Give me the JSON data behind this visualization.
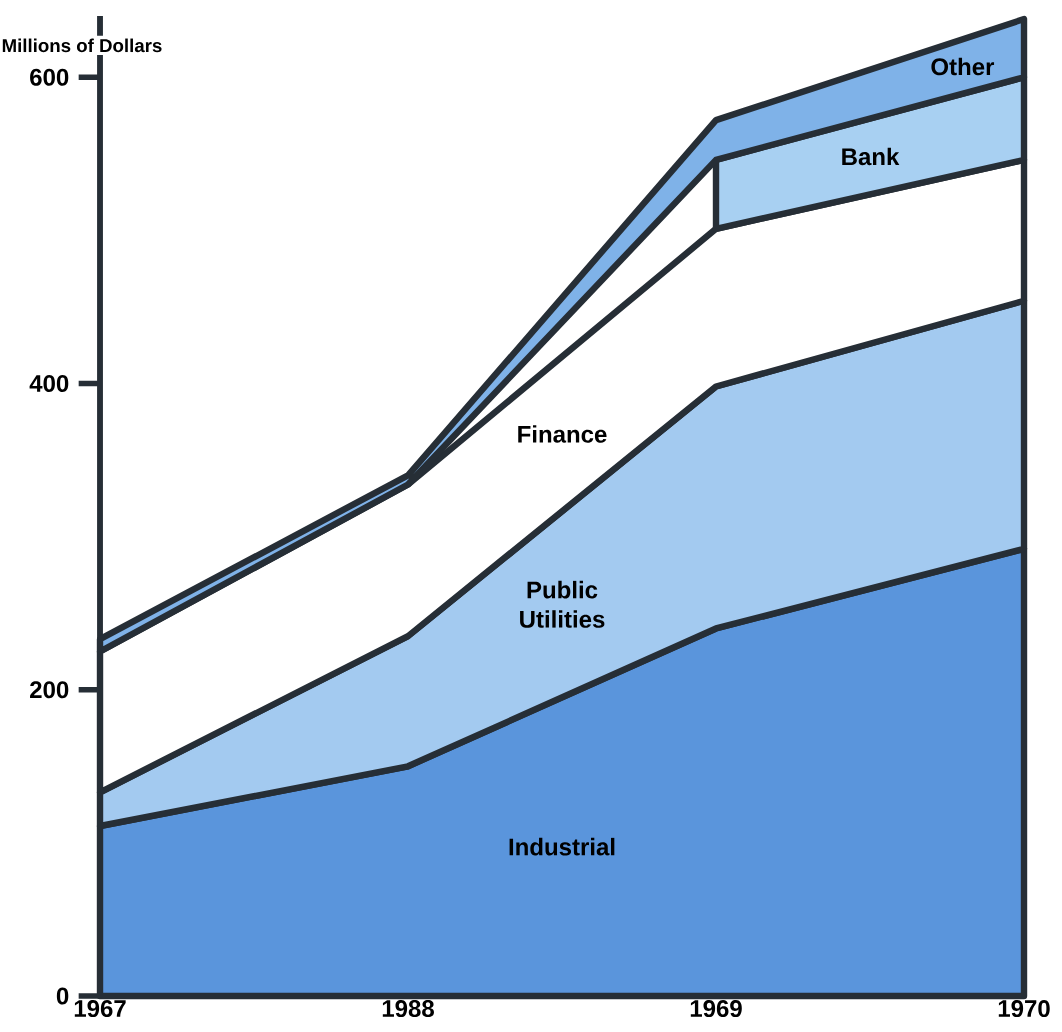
{
  "chart_data": {
    "type": "area",
    "stacked": true,
    "ylabel": "Millions of Dollars",
    "categories": [
      "1967",
      "1988",
      "1969",
      "1970"
    ],
    "series": [
      {
        "name": "Industrial",
        "color": "#5a95dc",
        "values": [
          111,
          150,
          240,
          292
        ]
      },
      {
        "name": "Public Utilities",
        "color": "#a3caf0",
        "values": [
          22,
          85,
          158,
          162
        ]
      },
      {
        "name": "Finance",
        "color": "#ffffff",
        "values": [
          92,
          99,
          103,
          92
        ]
      },
      {
        "name": "Bank",
        "color": "#a8d0f2",
        "values": [
          null,
          null,
          45,
          54
        ]
      },
      {
        "name": "Other",
        "color": "#7fb2e8",
        "values": [
          8,
          6,
          26,
          38
        ]
      }
    ],
    "ylim": [
      0,
      640
    ],
    "yticks": [
      0,
      200,
      400,
      600
    ],
    "grid": false,
    "marker": "none",
    "line_style": "solid"
  }
}
